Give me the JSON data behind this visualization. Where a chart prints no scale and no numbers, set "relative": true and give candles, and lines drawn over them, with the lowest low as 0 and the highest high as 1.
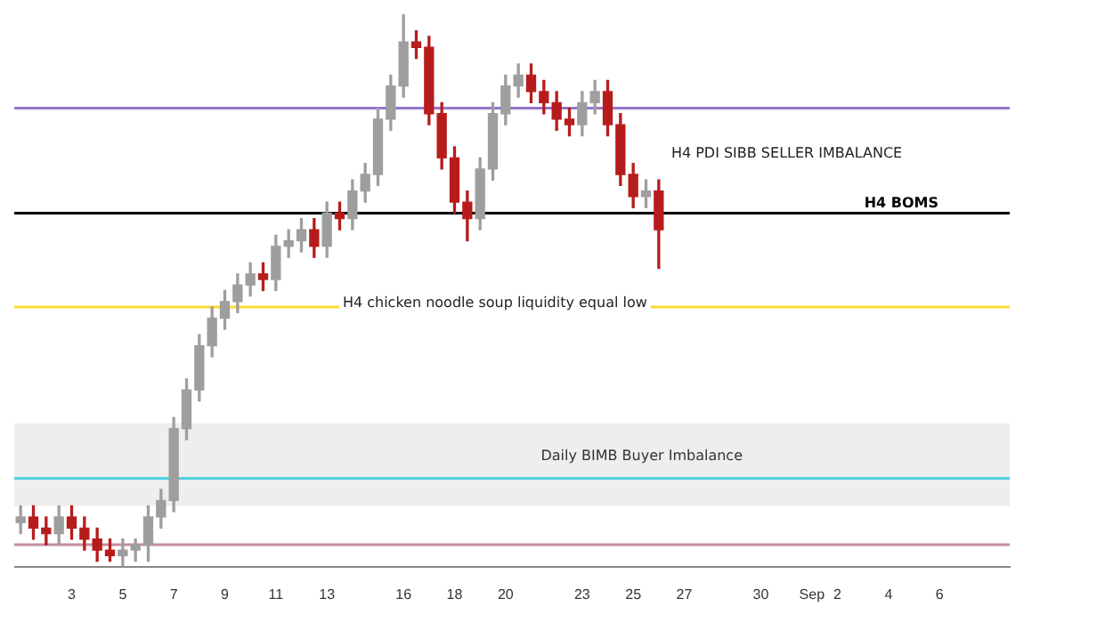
{
  "chart_data": {
    "type": "candlestick",
    "relative": true,
    "x": [
      "--08-01T00:00",
      "--08-01T12:00",
      "--08-02T00:00",
      "--08-02T12:00",
      "--08-03T00:00",
      "--08-03T12:00",
      "--08-04T00:00",
      "--08-04T12:00",
      "--08-05T00:00",
      "--08-05T12:00",
      "--08-06T00:00",
      "--08-06T12:00",
      "--08-07T00:00",
      "--08-07T12:00",
      "--08-08T00:00",
      "--08-08T12:00",
      "--08-09T00:00",
      "--08-09T12:00",
      "--08-10T00:00",
      "--08-10T12:00",
      "--08-11T00:00",
      "--08-11T12:00",
      "--08-12T00:00",
      "--08-12T12:00",
      "--08-13T00:00",
      "--08-13T12:00",
      "--08-14T00:00",
      "--08-14T12:00",
      "--08-15T00:00",
      "--08-15T12:00",
      "--08-16T00:00",
      "--08-16T12:00",
      "--08-17T00:00",
      "--08-17T12:00",
      "--08-18T00:00",
      "--08-18T12:00",
      "--08-19T00:00",
      "--08-19T12:00",
      "--08-20T00:00",
      "--08-20T12:00",
      "--08-21T00:00",
      "--08-21T12:00",
      "--08-22T00:00",
      "--08-22T12:00",
      "--08-23T00:00",
      "--08-23T12:00",
      "--08-24T00:00",
      "--08-24T12:00",
      "--08-25T00:00",
      "--08-25T12:00",
      "--08-26T00:00"
    ],
    "ohlc": [
      [
        0.08,
        0.11,
        0.06,
        0.09
      ],
      [
        0.09,
        0.11,
        0.05,
        0.07
      ],
      [
        0.07,
        0.09,
        0.04,
        0.06
      ],
      [
        0.06,
        0.11,
        0.04,
        0.09
      ],
      [
        0.09,
        0.11,
        0.05,
        0.07
      ],
      [
        0.07,
        0.09,
        0.03,
        0.05
      ],
      [
        0.05,
        0.07,
        0.01,
        0.03
      ],
      [
        0.03,
        0.05,
        0.01,
        0.02
      ],
      [
        0.02,
        0.05,
        0,
        0.03
      ],
      [
        0.03,
        0.05,
        0.01,
        0.04
      ],
      [
        0.04,
        0.11,
        0.01,
        0.09
      ],
      [
        0.09,
        0.14,
        0.07,
        0.12
      ],
      [
        0.12,
        0.27,
        0.1,
        0.25
      ],
      [
        0.25,
        0.34,
        0.23,
        0.32
      ],
      [
        0.32,
        0.42,
        0.3,
        0.4
      ],
      [
        0.4,
        0.47,
        0.38,
        0.45
      ],
      [
        0.45,
        0.5,
        0.43,
        0.48
      ],
      [
        0.48,
        0.53,
        0.46,
        0.51
      ],
      [
        0.51,
        0.55,
        0.49,
        0.53
      ],
      [
        0.53,
        0.55,
        0.5,
        0.52
      ],
      [
        0.52,
        0.6,
        0.5,
        0.58
      ],
      [
        0.58,
        0.61,
        0.56,
        0.59
      ],
      [
        0.59,
        0.63,
        0.57,
        0.61
      ],
      [
        0.61,
        0.63,
        0.56,
        0.58
      ],
      [
        0.58,
        0.66,
        0.56,
        0.64
      ],
      [
        0.64,
        0.66,
        0.61,
        0.63
      ],
      [
        0.63,
        0.7,
        0.61,
        0.68
      ],
      [
        0.68,
        0.73,
        0.66,
        0.71
      ],
      [
        0.71,
        0.83,
        0.69,
        0.81
      ],
      [
        0.81,
        0.89,
        0.79,
        0.87
      ],
      [
        0.87,
        1.0,
        0.85,
        0.95
      ],
      [
        0.95,
        0.97,
        0.92,
        0.94
      ],
      [
        0.94,
        0.96,
        0.8,
        0.82
      ],
      [
        0.82,
        0.84,
        0.72,
        0.74
      ],
      [
        0.74,
        0.76,
        0.64,
        0.66
      ],
      [
        0.66,
        0.68,
        0.59,
        0.63
      ],
      [
        0.63,
        0.74,
        0.61,
        0.72
      ],
      [
        0.72,
        0.84,
        0.7,
        0.82
      ],
      [
        0.82,
        0.89,
        0.8,
        0.87
      ],
      [
        0.87,
        0.91,
        0.85,
        0.89
      ],
      [
        0.89,
        0.91,
        0.84,
        0.86
      ],
      [
        0.86,
        0.88,
        0.82,
        0.84
      ],
      [
        0.84,
        0.86,
        0.79,
        0.81
      ],
      [
        0.81,
        0.83,
        0.78,
        0.8
      ],
      [
        0.8,
        0.86,
        0.78,
        0.84
      ],
      [
        0.84,
        0.88,
        0.82,
        0.86
      ],
      [
        0.86,
        0.88,
        0.78,
        0.8
      ],
      [
        0.8,
        0.82,
        0.69,
        0.71
      ],
      [
        0.71,
        0.73,
        0.65,
        0.67
      ],
      [
        0.67,
        0.7,
        0.65,
        0.68
      ],
      [
        0.68,
        0.7,
        0.54,
        0.61
      ]
    ],
    "colors": [
      "#9e9e9e",
      "#b71c1c",
      "#b71c1c",
      "#9e9e9e",
      "#b71c1c",
      "#b71c1c",
      "#b71c1c",
      "#b71c1c",
      "#9e9e9e",
      "#9e9e9e",
      "#9e9e9e",
      "#9e9e9e",
      "#9e9e9e",
      "#9e9e9e",
      "#9e9e9e",
      "#9e9e9e",
      "#9e9e9e",
      "#9e9e9e",
      "#9e9e9e",
      "#b71c1c",
      "#9e9e9e",
      "#9e9e9e",
      "#9e9e9e",
      "#b71c1c",
      "#9e9e9e",
      "#b71c1c",
      "#9e9e9e",
      "#9e9e9e",
      "#9e9e9e",
      "#9e9e9e",
      "#9e9e9e",
      "#b71c1c",
      "#b71c1c",
      "#b71c1c",
      "#b71c1c",
      "#b71c1c",
      "#9e9e9e",
      "#9e9e9e",
      "#9e9e9e",
      "#9e9e9e",
      "#b71c1c",
      "#b71c1c",
      "#b71c1c",
      "#b71c1c",
      "#9e9e9e",
      "#9e9e9e",
      "#b71c1c",
      "#b71c1c",
      "#b71c1c",
      "#9e9e9e",
      "#b71c1c"
    ],
    "xlim": [
      "--07-31T18:00",
      "--09-08T18:00"
    ],
    "xticks": [
      {
        "value": "--08-03",
        "label": "3"
      },
      {
        "value": "--08-05",
        "label": "5"
      },
      {
        "value": "--08-07",
        "label": "7"
      },
      {
        "value": "--08-09",
        "label": "9"
      },
      {
        "value": "--08-11",
        "label": "11"
      },
      {
        "value": "--08-13",
        "label": "13"
      },
      {
        "value": "--08-16",
        "label": "16"
      },
      {
        "value": "--08-18",
        "label": "18"
      },
      {
        "value": "--08-20",
        "label": "20"
      },
      {
        "value": "--08-23",
        "label": "23"
      },
      {
        "value": "--08-25",
        "label": "25"
      },
      {
        "value": "--08-27",
        "label": "27"
      },
      {
        "value": "--08-30",
        "label": "30"
      },
      {
        "value": "--09-01",
        "label": "Sep"
      },
      {
        "value": "--09-02",
        "label": "2"
      },
      {
        "value": "--09-04",
        "label": "4"
      },
      {
        "value": "--09-06",
        "label": "6"
      }
    ],
    "tick_labels": "x",
    "grid": false,
    "ref_lines": [
      {
        "axis": "y",
        "value": 0.83,
        "color": "#9575cd"
      },
      {
        "axis": "y",
        "value": 0.64,
        "label": "H4 BOMS",
        "color": "#000000"
      },
      {
        "axis": "y",
        "value": 0.47,
        "color": "#fdd835"
      },
      {
        "axis": "y",
        "value": 0.16,
        "color": "#4dd0e1"
      },
      {
        "axis": "y",
        "value": 0.04,
        "color": "#c48b9f"
      }
    ],
    "bands": [
      {
        "axis": "y",
        "from": 0.11,
        "to": 0.26,
        "label": "Daily BIMB Buyer Imbalance",
        "color": "#eeeeee"
      }
    ],
    "annotations": [
      "H4 chicken noodle soup liquidity equal low",
      "H4 PDI SIBB SELLER IMBALANCE"
    ]
  }
}
